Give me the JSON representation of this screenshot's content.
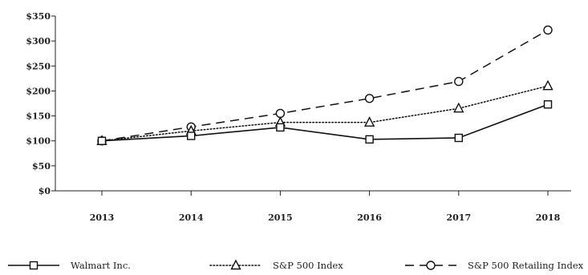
{
  "chart_data": {
    "type": "line",
    "title": "",
    "xlabel": "",
    "ylabel": "",
    "categories": [
      "2013",
      "2014",
      "2015",
      "2016",
      "2017",
      "2018"
    ],
    "ylim": [
      0,
      350
    ],
    "y_ticks": [
      "$0",
      "$50",
      "$100",
      "$150",
      "$200",
      "$250",
      "$300",
      "$350"
    ],
    "grid": false,
    "legend_position": "bottom",
    "series": [
      {
        "name": "Walmart Inc.",
        "values": [
          100,
          110,
          127,
          103,
          106,
          173
        ],
        "marker": "square",
        "line_style": "solid",
        "color": "#111111"
      },
      {
        "name": "S&P 500 Index",
        "values": [
          100,
          120,
          137,
          137,
          165,
          210
        ],
        "marker": "triangle",
        "line_style": "dotted",
        "color": "#111111"
      },
      {
        "name": "S&P 500 Retailing Index",
        "values": [
          100,
          128,
          155,
          185,
          219,
          322
        ],
        "marker": "circle",
        "line_style": "dashed",
        "color": "#111111"
      }
    ]
  }
}
